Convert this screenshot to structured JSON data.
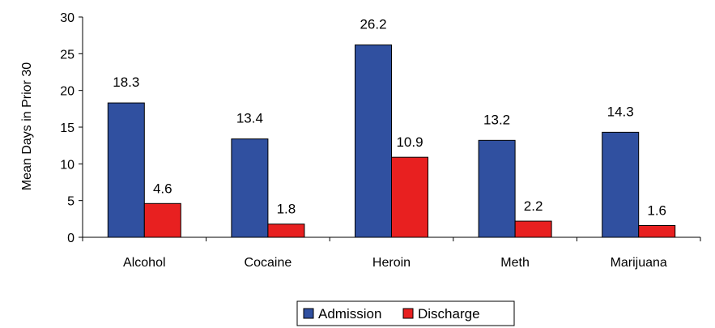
{
  "chart_data": {
    "type": "bar",
    "title": "",
    "xlabel": "",
    "ylabel": "Mean Days in Prior 30",
    "ylim": [
      0,
      30
    ],
    "yticks": [
      0,
      5,
      10,
      15,
      20,
      25,
      30
    ],
    "categories": [
      "Alcohol",
      "Cocaine",
      "Heroin",
      "Meth",
      "Marijuana"
    ],
    "series": [
      {
        "name": "Admission",
        "color": "#3050A0",
        "values": [
          18.3,
          13.4,
          26.2,
          13.2,
          14.3
        ]
      },
      {
        "name": "Discharge",
        "color": "#E82020",
        "values": [
          4.6,
          1.8,
          10.9,
          2.2,
          1.6
        ]
      }
    ],
    "data_labels": [
      [
        "18.3",
        "13.4",
        "26.2",
        "13.2",
        "14.3"
      ],
      [
        "4.6",
        "1.8",
        "10.9",
        "2.2",
        "1.6"
      ]
    ],
    "grid": false,
    "legend_position": "bottom"
  }
}
